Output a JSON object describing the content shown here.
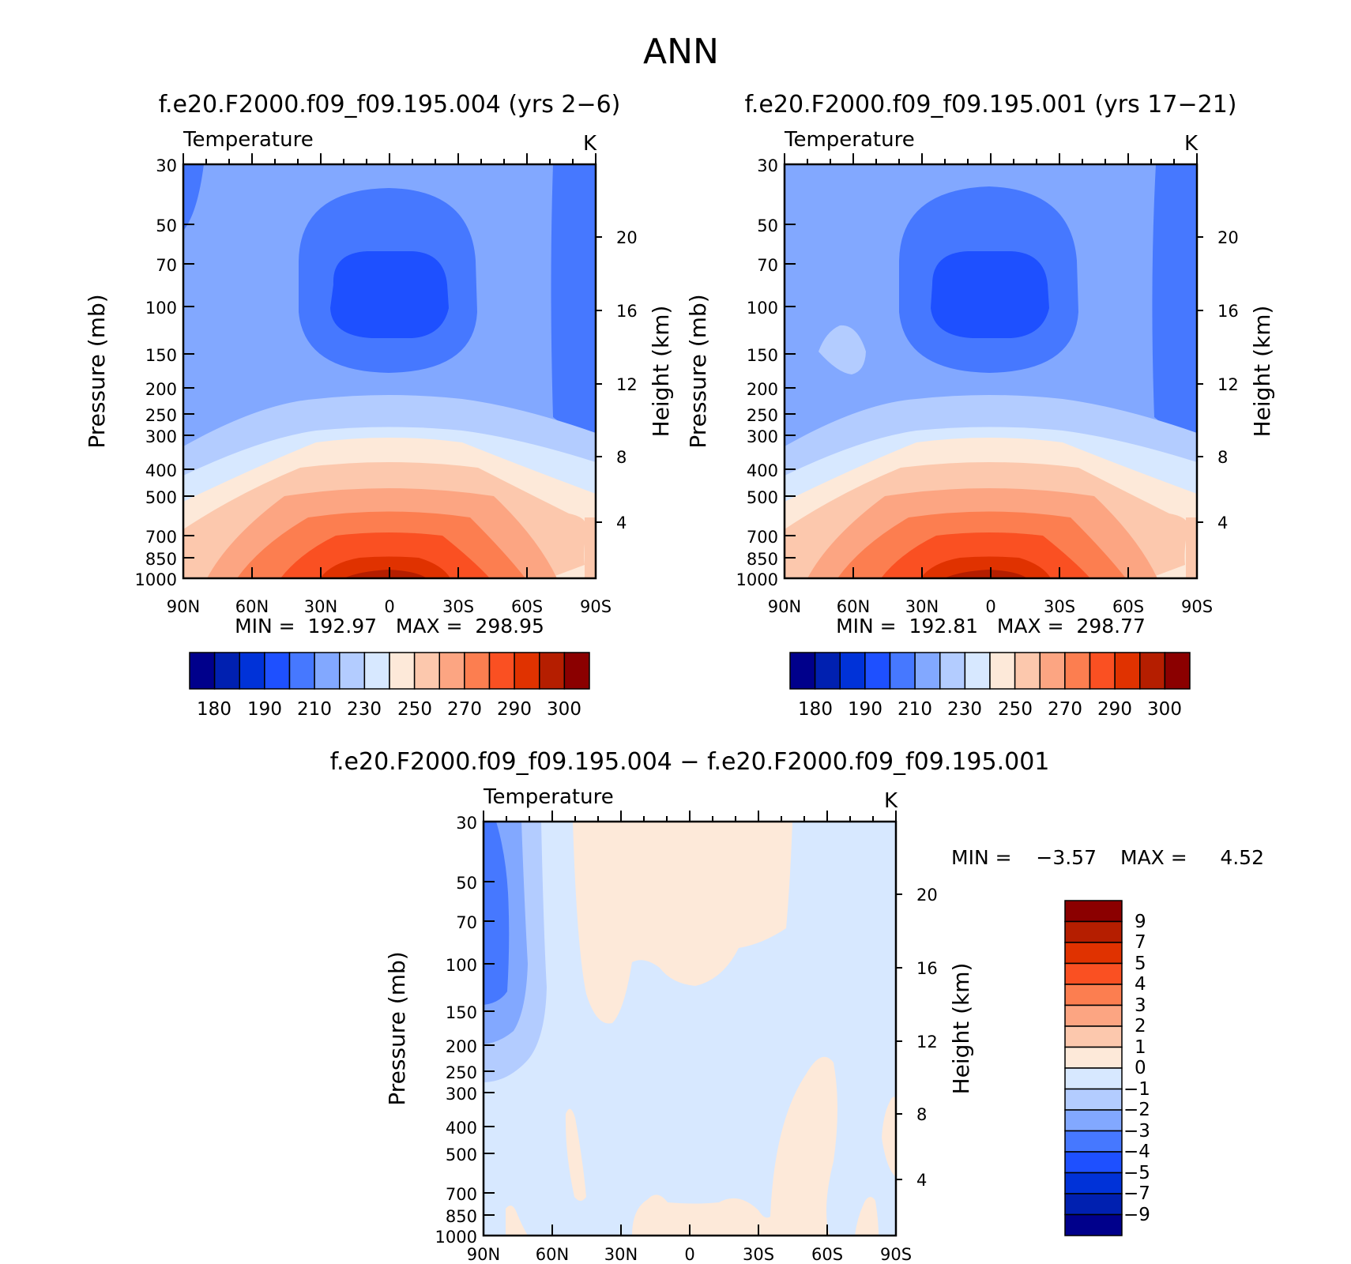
{
  "figure_title": "ANN",
  "chart_data": [
    {
      "type": "heatmap",
      "title": "f.e20.F2000.f09_f09.195.004 (yrs 2−6)",
      "variable": "Temperature",
      "units": "K",
      "xlabel": "",
      "ylabel": "Pressure (mb)",
      "ylabel_right": "Height (km)",
      "x_ticks": [
        "90N",
        "60N",
        "30N",
        "0",
        "30S",
        "60S",
        "90S"
      ],
      "y_ticks": [
        "30",
        "50",
        "70",
        "100",
        "150",
        "200",
        "250",
        "300",
        "400",
        "500",
        "700",
        "850",
        "1000"
      ],
      "y_ticks_right": [
        "20",
        "16",
        "12",
        "8",
        "4"
      ],
      "stats_text": "MIN =  192.97   MAX =  298.95",
      "min": 192.97,
      "max": 298.95,
      "colorbar_levels": [
        180,
        185,
        190,
        200,
        210,
        220,
        230,
        240,
        250,
        260,
        270,
        280,
        290,
        295,
        300
      ],
      "colorbar_labels": [
        "180",
        "190",
        "210",
        "230",
        "250",
        "270",
        "290",
        "300"
      ]
    },
    {
      "type": "heatmap",
      "title": "f.e20.F2000.f09_f09.195.001 (yrs 17−21)",
      "variable": "Temperature",
      "units": "K",
      "xlabel": "",
      "ylabel": "Pressure (mb)",
      "ylabel_right": "Height (km)",
      "x_ticks": [
        "90N",
        "60N",
        "30N",
        "0",
        "30S",
        "60S",
        "90S"
      ],
      "y_ticks": [
        "30",
        "50",
        "70",
        "100",
        "150",
        "200",
        "250",
        "300",
        "400",
        "500",
        "700",
        "850",
        "1000"
      ],
      "y_ticks_right": [
        "20",
        "16",
        "12",
        "8",
        "4"
      ],
      "stats_text": "MIN =  192.81   MAX =  298.77",
      "min": 192.81,
      "max": 298.77,
      "colorbar_levels": [
        180,
        185,
        190,
        200,
        210,
        220,
        230,
        240,
        250,
        260,
        270,
        280,
        290,
        295,
        300
      ],
      "colorbar_labels": [
        "180",
        "190",
        "210",
        "230",
        "250",
        "270",
        "290",
        "300"
      ]
    },
    {
      "type": "heatmap",
      "title": "f.e20.F2000.f09_f09.195.004 − f.e20.F2000.f09_f09.195.001",
      "variable": "Temperature",
      "units": "K",
      "xlabel": "",
      "ylabel": "Pressure (mb)",
      "ylabel_right": "Height (km)",
      "x_ticks": [
        "90N",
        "60N",
        "30N",
        "0",
        "30S",
        "60S",
        "90S"
      ],
      "y_ticks": [
        "30",
        "50",
        "70",
        "100",
        "150",
        "200",
        "250",
        "300",
        "400",
        "500",
        "700",
        "850",
        "1000"
      ],
      "y_ticks_right": [
        "20",
        "16",
        "12",
        "8",
        "4"
      ],
      "stats_min_label": "MIN =",
      "stats_min_value": "−3.57",
      "stats_max_label": "MAX =",
      "stats_max_value": "4.52",
      "min": -3.57,
      "max": 4.52,
      "colorbar_labels": [
        "9",
        "7",
        "5",
        "4",
        "3",
        "2",
        "1",
        "0",
        "−1",
        "−2",
        "−3",
        "−4",
        "−5",
        "−7",
        "−9"
      ]
    }
  ],
  "palette": [
    "#00008b",
    "#0020b0",
    "#0032d8",
    "#1e50ff",
    "#4678ff",
    "#82a8ff",
    "#b3ccff",
    "#d7e8ff",
    "#fde9d9",
    "#fcc8ad",
    "#fca582",
    "#fc7e50",
    "#fa5022",
    "#e03200",
    "#b51e00",
    "#8b0000"
  ],
  "mean_field_colors": {
    "c1": "#4678ff",
    "c2": "#82a8ff",
    "c3": "#b3ccff",
    "c4": "#d7e8ff",
    "c5": "#fde9d9",
    "c6": "#fcc8ad",
    "c7": "#fca582",
    "c8": "#fc7e50",
    "c9": "#fa5022",
    "c10": "#e03200",
    "c11": "#b51e00",
    "core": "#1e50ff"
  },
  "diff_field_colors": {
    "base": "#d7e8ff",
    "pos": "#fde9d9",
    "neg1": "#b3ccff",
    "neg2": "#82a8ff",
    "neg3": "#4678ff"
  }
}
